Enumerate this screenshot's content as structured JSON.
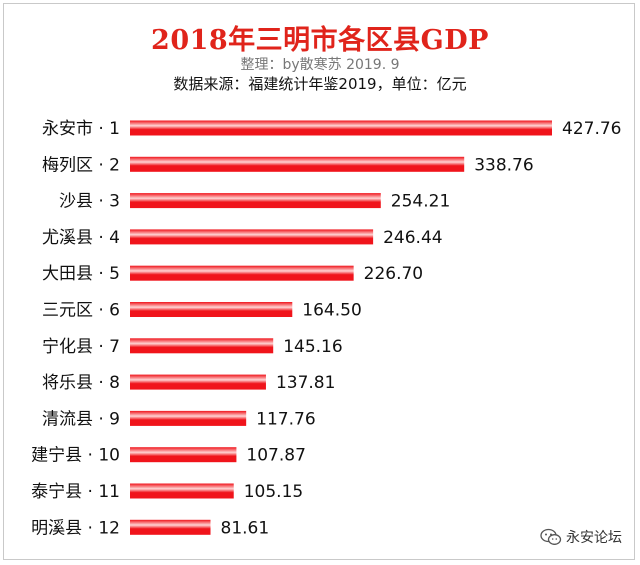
{
  "title": "2018年三明市各区县GDP",
  "subtitle": "整理：by散寒苏  2019. 9",
  "source": "数据来源：福建统计年鉴2019，单位：亿元",
  "watermark": {
    "text": "永安论坛",
    "icon": "wechat-icon"
  },
  "colors": {
    "title": "#e0241b",
    "bar": "#f0141b",
    "bar_highlight": "#ffd3d3"
  },
  "chart_data": {
    "type": "bar",
    "orientation": "horizontal",
    "categories": [
      "永安市 · 1",
      "梅列区 · 2",
      "沙县 · 3",
      "尤溪县 · 4",
      "大田县 · 5",
      "三元区 · 6",
      "宁化县 · 7",
      "将乐县 · 8",
      "清流县 · 9",
      "建宁县 · 10",
      "泰宁县 · 11",
      "明溪县 · 12"
    ],
    "values": [
      427.76,
      338.76,
      254.21,
      246.44,
      226.7,
      164.5,
      145.16,
      137.81,
      117.76,
      107.87,
      105.15,
      81.61
    ],
    "labels": [
      "427.76",
      "338.76",
      "254.21",
      "246.44",
      "226.70",
      "164.50",
      "145.16",
      "137.81",
      "117.76",
      "107.87",
      "105.15",
      "81.61"
    ],
    "xlim": [
      0,
      427.76
    ],
    "grid": false,
    "legend": "none"
  }
}
